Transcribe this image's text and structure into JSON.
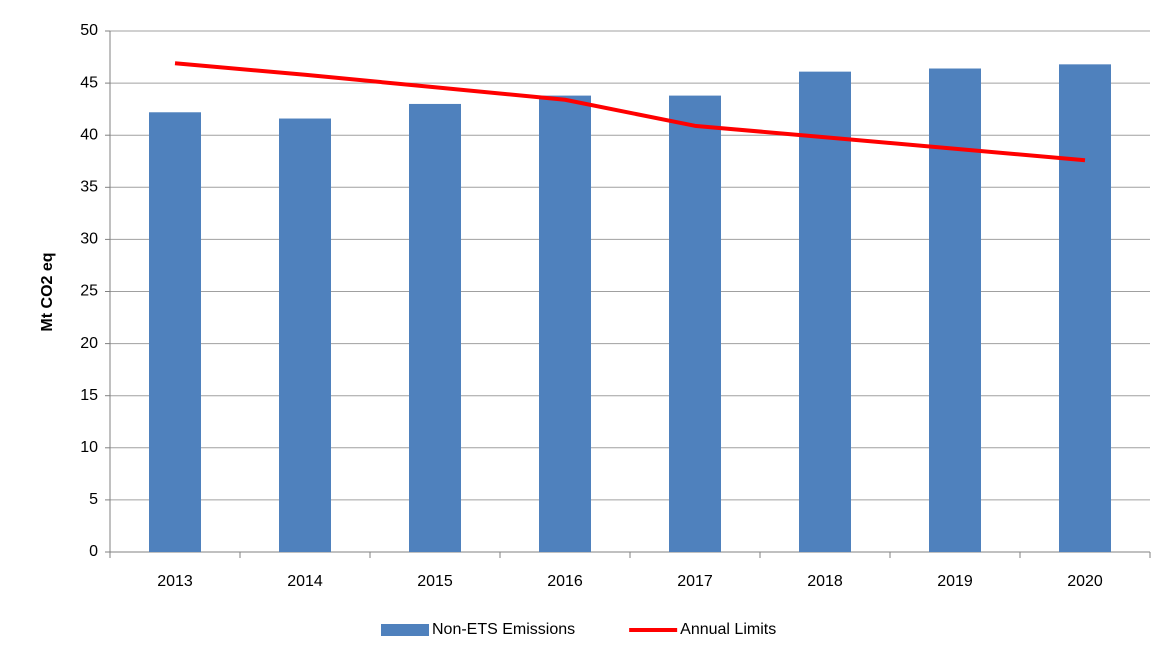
{
  "chart_data": {
    "type": "bar",
    "y_label": "Mt CO2 eq",
    "categories": [
      "2013",
      "2014",
      "2015",
      "2016",
      "2017",
      "2018",
      "2019",
      "2020"
    ],
    "series": [
      {
        "name": "Non-ETS Emissions",
        "type": "bar",
        "color": "#4f81bd",
        "values": [
          42.2,
          41.6,
          43.0,
          43.8,
          43.8,
          46.1,
          46.4,
          46.8
        ]
      },
      {
        "name": "Annual Limits",
        "type": "line",
        "color": "#ff0000",
        "values": [
          46.9,
          45.8,
          44.6,
          43.4,
          40.9,
          39.8,
          38.7,
          37.6
        ]
      }
    ],
    "ylim": [
      0,
      50
    ],
    "yticks": [
      0,
      5,
      10,
      15,
      20,
      25,
      30,
      35,
      40,
      45,
      50
    ],
    "grid": true,
    "legend": "bottom"
  }
}
